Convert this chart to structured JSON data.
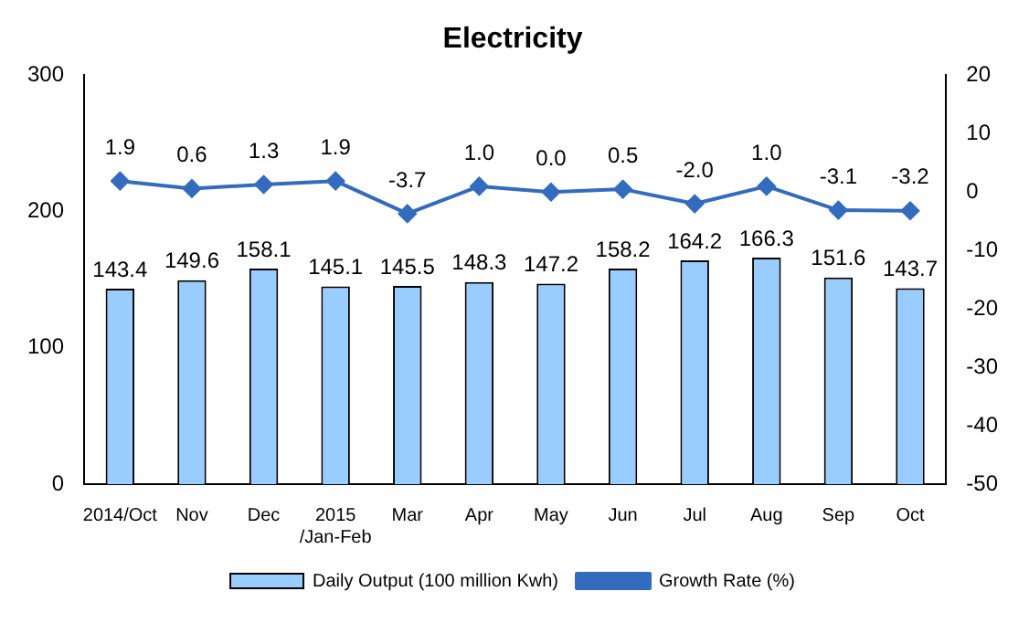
{
  "chart_data": {
    "type": "bar",
    "title": "Electricity",
    "categories": [
      "2014/Oct",
      "Nov",
      "Dec",
      "2015\n/Jan-Feb",
      "Mar",
      "Apr",
      "May",
      "Jun",
      "Jul",
      "Aug",
      "Sep",
      "Oct"
    ],
    "series": [
      {
        "name": "Daily Output (100 million Kwh)",
        "color": "#99ccff",
        "values": [
          143.4,
          149.6,
          158.1,
          145.1,
          145.5,
          148.3,
          147.2,
          158.2,
          164.2,
          166.3,
          151.6,
          143.7
        ],
        "value_labels": [
          "143.4",
          "149.6",
          "158.1",
          "145.1",
          "145.5",
          "148.3",
          "147.2",
          "158.2",
          "164.2",
          "166.3",
          "151.6",
          "143.7"
        ]
      },
      {
        "name": "Growth Rate (%)",
        "type": "line",
        "axis": "y2",
        "color": "#336bbf",
        "values": [
          1.9,
          0.6,
          1.3,
          1.9,
          -3.7,
          1.0,
          0.0,
          0.5,
          -2.0,
          1.0,
          -3.1,
          -3.2
        ],
        "value_labels": [
          "1.9",
          "0.6",
          "1.3",
          "1.9",
          "-3.7",
          "1.0",
          "0.0",
          "0.5",
          "-2.0",
          "1.0",
          "-3.1",
          "-3.2"
        ]
      }
    ],
    "ylim": [
      0,
      300
    ],
    "yticks": [
      0,
      100,
      200,
      300
    ],
    "y2lim": [
      -50,
      20
    ],
    "y2ticks": [
      -50,
      -40,
      -30,
      -20,
      -10,
      0,
      10,
      20
    ],
    "grid": false,
    "legend": "bottom",
    "marker": "diamond",
    "line_style": "solid"
  }
}
